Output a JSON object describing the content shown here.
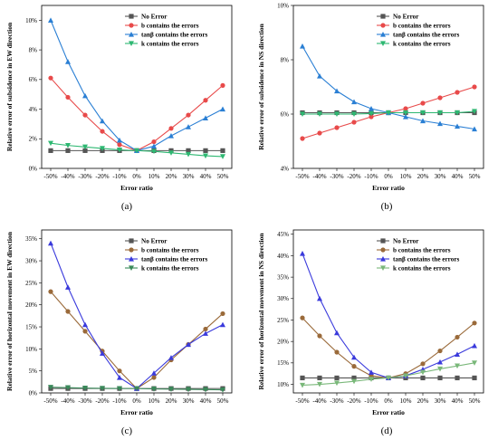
{
  "figure": {
    "panel_labels": [
      "(a)",
      "(b)",
      "(c)",
      "(d)"
    ]
  },
  "chart_data": [
    {
      "type": "line",
      "panel": "(a)",
      "xlabel": "Error ratio",
      "ylabel": "Relative error of subsidence in EW direction",
      "categories": [
        "-50%",
        "-40%",
        "-30%",
        "-20%",
        "-10%",
        "0%",
        "10%",
        "20%",
        "30%",
        "40%",
        "50%"
      ],
      "ylim": [
        0,
        11
      ],
      "yticks": [
        0,
        2,
        4,
        6,
        8,
        10
      ],
      "ytick_labels": [
        "0%",
        "2%",
        "4%",
        "6%",
        "8%",
        "10%"
      ],
      "legend_position": "top-right",
      "series": [
        {
          "name": "No Error",
          "color": "#555555",
          "marker": "square",
          "values": [
            1.2,
            1.2,
            1.2,
            1.2,
            1.2,
            1.2,
            1.2,
            1.2,
            1.2,
            1.2,
            1.2
          ]
        },
        {
          "name": "b contains the errors",
          "color": "#e84a4a",
          "marker": "circle",
          "values": [
            6.1,
            4.8,
            3.6,
            2.5,
            1.6,
            1.2,
            1.8,
            2.7,
            3.6,
            4.6,
            5.6
          ]
        },
        {
          "name": "tanβ contains the errors",
          "color": "#2a7fd4",
          "marker": "triangle-up",
          "values": [
            10.0,
            7.2,
            4.9,
            3.2,
            1.9,
            1.2,
            1.5,
            2.2,
            2.8,
            3.4,
            4.0
          ]
        },
        {
          "name": "k contains the errors",
          "color": "#2eb872",
          "marker": "triangle-down",
          "values": [
            1.7,
            1.55,
            1.45,
            1.35,
            1.25,
            1.2,
            1.15,
            1.05,
            0.95,
            0.85,
            0.8
          ]
        }
      ]
    },
    {
      "type": "line",
      "panel": "(b)",
      "xlabel": "Error ratio",
      "ylabel": "Relative error of subsidence in NS direction",
      "categories": [
        "-50%",
        "-40%",
        "-30%",
        "-20%",
        "-10%",
        "0%",
        "10%",
        "20%",
        "30%",
        "40%",
        "50%"
      ],
      "ylim": [
        4,
        10
      ],
      "yticks": [
        4,
        6,
        8,
        10
      ],
      "ytick_labels": [
        "4%",
        "6%",
        "8%",
        "10%"
      ],
      "legend_position": "top-right",
      "series": [
        {
          "name": "No Error",
          "color": "#555555",
          "marker": "square",
          "values": [
            6.05,
            6.05,
            6.05,
            6.05,
            6.05,
            6.05,
            6.05,
            6.05,
            6.05,
            6.05,
            6.05
          ]
        },
        {
          "name": "b contains the errors",
          "color": "#e84a4a",
          "marker": "circle",
          "values": [
            5.1,
            5.3,
            5.5,
            5.7,
            5.9,
            6.05,
            6.2,
            6.4,
            6.6,
            6.8,
            7.0
          ]
        },
        {
          "name": "tanβ contains the errors",
          "color": "#2a7fd4",
          "marker": "triangle-up",
          "values": [
            8.5,
            7.4,
            6.85,
            6.45,
            6.2,
            6.05,
            5.9,
            5.75,
            5.65,
            5.55,
            5.45
          ]
        },
        {
          "name": "k contains the errors",
          "color": "#2eb872",
          "marker": "triangle-down",
          "values": [
            6.0,
            6.0,
            6.0,
            6.0,
            6.02,
            6.05,
            6.05,
            6.05,
            6.05,
            6.05,
            6.1
          ]
        }
      ]
    },
    {
      "type": "line",
      "panel": "(c)",
      "xlabel": "Error ratio",
      "ylabel": "Relative error of horizontal movement in EW direction",
      "categories": [
        "-50%",
        "-40%",
        "-30%",
        "-20%",
        "-10%",
        "0%",
        "10%",
        "20%",
        "30%",
        "40%",
        "50%"
      ],
      "ylim": [
        0,
        37
      ],
      "yticks": [
        0,
        5,
        10,
        15,
        20,
        25,
        30,
        35
      ],
      "ytick_labels": [
        "0%",
        "5%",
        "10%",
        "15%",
        "20%",
        "25%",
        "30%",
        "35%"
      ],
      "legend_position": "top-right",
      "series": [
        {
          "name": "No Error",
          "color": "#555555",
          "marker": "square",
          "values": [
            1.0,
            1.0,
            1.0,
            1.0,
            1.0,
            1.0,
            1.0,
            1.0,
            1.0,
            1.0,
            1.0
          ]
        },
        {
          "name": "b contains the errors",
          "color": "#9a6a3a",
          "marker": "circle",
          "values": [
            23.0,
            18.5,
            14.0,
            9.5,
            5.0,
            1.0,
            3.5,
            7.5,
            11.0,
            14.5,
            18.0
          ]
        },
        {
          "name": "tanβ contains the errors",
          "color": "#3a3adc",
          "marker": "triangle-up",
          "values": [
            34.0,
            24.0,
            15.5,
            9.0,
            3.5,
            1.0,
            4.5,
            8.0,
            11.0,
            13.5,
            15.5
          ]
        },
        {
          "name": "k contains the errors",
          "color": "#3a8a5a",
          "marker": "triangle-down",
          "values": [
            1.3,
            1.2,
            1.1,
            1.05,
            1.0,
            1.0,
            0.9,
            0.85,
            0.8,
            0.75,
            0.7
          ]
        }
      ]
    },
    {
      "type": "line",
      "panel": "(d)",
      "xlabel": "Error ratio",
      "ylabel": "Relative error of horizontal movement in NS direction",
      "categories": [
        "-50%",
        "-40%",
        "-30%",
        "-20%",
        "-10%",
        "0%",
        "10%",
        "20%",
        "30%",
        "40%",
        "50%"
      ],
      "ylim": [
        8,
        46
      ],
      "yticks": [
        10,
        15,
        20,
        25,
        30,
        35,
        40,
        45
      ],
      "ytick_labels": [
        "10%",
        "15%",
        "20%",
        "25%",
        "30%",
        "35%",
        "40%",
        "45%"
      ],
      "legend_position": "top-right",
      "series": [
        {
          "name": "No Error",
          "color": "#555555",
          "marker": "square",
          "values": [
            11.5,
            11.5,
            11.5,
            11.5,
            11.5,
            11.5,
            11.5,
            11.5,
            11.5,
            11.5,
            11.5
          ]
        },
        {
          "name": "b contains the errors",
          "color": "#9a6a3a",
          "marker": "circle",
          "values": [
            25.5,
            21.3,
            17.5,
            14.2,
            12.0,
            11.5,
            12.5,
            14.8,
            17.8,
            21.0,
            24.3
          ]
        },
        {
          "name": "tanβ contains the errors",
          "color": "#3a3adc",
          "marker": "triangle-up",
          "values": [
            40.5,
            30.0,
            22.0,
            16.3,
            12.8,
            11.5,
            12.0,
            13.5,
            15.2,
            17.0,
            19.0
          ]
        },
        {
          "name": "k contains the errors",
          "color": "#7ab87a",
          "marker": "triangle-down",
          "values": [
            9.8,
            10.0,
            10.3,
            10.7,
            11.2,
            11.5,
            12.0,
            12.8,
            13.6,
            14.3,
            15.0
          ]
        }
      ]
    }
  ]
}
